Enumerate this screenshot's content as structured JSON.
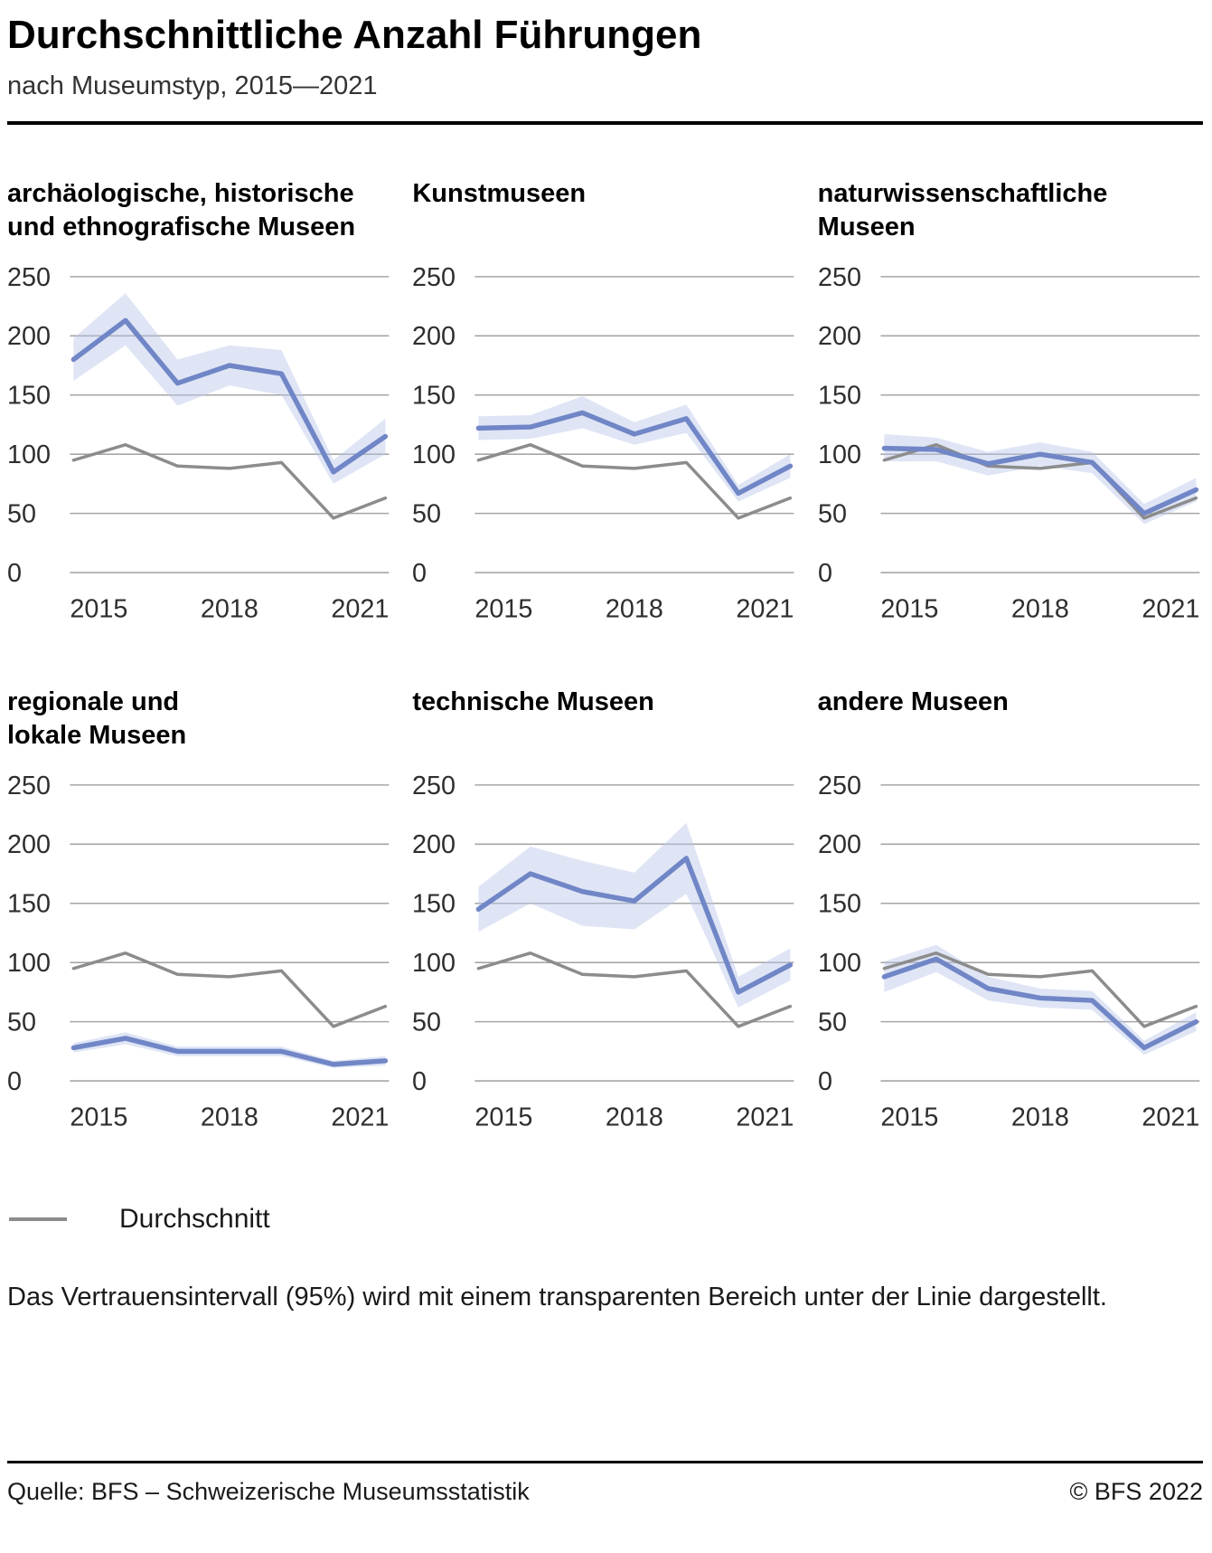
{
  "header": {
    "title": "Durchschnittliche Anzahl Führungen",
    "subtitle": "nach Museumstyp, 2015—2021"
  },
  "legend": {
    "label": "Durchschnitt"
  },
  "footnote": "Das Vertrauensintervall (95%) wird mit einem transparenten Bereich unter der Linie dargestellt.",
  "footer": {
    "source": "Quelle: BFS – Schweizerische Museumsstatistik",
    "copyright": "© BFS 2022"
  },
  "colors": {
    "series_line": "#7086c6",
    "band_fill": "#b9c6e8",
    "band_opacity": 0.45,
    "average_line": "#8c8c8c",
    "grid": "#a6a6a6",
    "tick_text": "#2e2e2e"
  },
  "chart_data": [
    {
      "type": "line",
      "title": "archäologische, historische\nund ethnografische Museen",
      "x": [
        2015,
        2016,
        2017,
        2018,
        2019,
        2020,
        2021
      ],
      "x_ticks": [
        "2015",
        "2018",
        "2021"
      ],
      "ylim": [
        0,
        250
      ],
      "y_ticks": [
        0,
        50,
        100,
        150,
        200,
        250
      ],
      "series": [
        {
          "name": "archäologische, historische und ethnografische Museen",
          "values": [
            180,
            213,
            160,
            175,
            168,
            85,
            115
          ],
          "ci_low": [
            162,
            192,
            141,
            158,
            150,
            75,
            100
          ],
          "ci_high": [
            198,
            236,
            180,
            192,
            188,
            95,
            130
          ]
        },
        {
          "name": "Durchschnitt",
          "values": [
            95,
            108,
            90,
            88,
            93,
            46,
            63
          ]
        }
      ]
    },
    {
      "type": "line",
      "title": "Kunstmuseen",
      "x": [
        2015,
        2016,
        2017,
        2018,
        2019,
        2020,
        2021
      ],
      "x_ticks": [
        "2015",
        "2018",
        "2021"
      ],
      "ylim": [
        0,
        250
      ],
      "y_ticks": [
        0,
        50,
        100,
        150,
        200,
        250
      ],
      "series": [
        {
          "name": "Kunstmuseen",
          "values": [
            122,
            123,
            135,
            117,
            130,
            67,
            90
          ],
          "ci_low": [
            112,
            113,
            122,
            108,
            118,
            60,
            80
          ],
          "ci_high": [
            132,
            133,
            149,
            127,
            142,
            74,
            100
          ]
        },
        {
          "name": "Durchschnitt",
          "values": [
            95,
            108,
            90,
            88,
            93,
            46,
            63
          ]
        }
      ]
    },
    {
      "type": "line",
      "title": "naturwissenschaftliche\nMuseen",
      "x": [
        2015,
        2016,
        2017,
        2018,
        2019,
        2020,
        2021
      ],
      "x_ticks": [
        "2015",
        "2018",
        "2021"
      ],
      "ylim": [
        0,
        250
      ],
      "y_ticks": [
        0,
        50,
        100,
        150,
        200,
        250
      ],
      "series": [
        {
          "name": "naturwissenschaftliche Museen",
          "values": [
            105,
            104,
            92,
            100,
            93,
            50,
            70
          ],
          "ci_low": [
            94,
            94,
            82,
            90,
            84,
            41,
            60
          ],
          "ci_high": [
            117,
            114,
            102,
            110,
            102,
            58,
            80
          ]
        },
        {
          "name": "Durchschnitt",
          "values": [
            95,
            108,
            90,
            88,
            93,
            46,
            63
          ]
        }
      ]
    },
    {
      "type": "line",
      "title": "regionale und\nlokale Museen",
      "x": [
        2015,
        2016,
        2017,
        2018,
        2019,
        2020,
        2021
      ],
      "x_ticks": [
        "2015",
        "2018",
        "2021"
      ],
      "ylim": [
        0,
        250
      ],
      "y_ticks": [
        0,
        50,
        100,
        150,
        200,
        250
      ],
      "series": [
        {
          "name": "regionale und lokale Museen",
          "values": [
            28,
            36,
            25,
            25,
            25,
            14,
            17
          ],
          "ci_low": [
            24,
            31,
            21,
            21,
            21,
            11,
            13
          ],
          "ci_high": [
            32,
            41,
            29,
            29,
            29,
            17,
            21
          ]
        },
        {
          "name": "Durchschnitt",
          "values": [
            95,
            108,
            90,
            88,
            93,
            46,
            63
          ]
        }
      ]
    },
    {
      "type": "line",
      "title": "technische Museen",
      "x": [
        2015,
        2016,
        2017,
        2018,
        2019,
        2020,
        2021
      ],
      "x_ticks": [
        "2015",
        "2018",
        "2021"
      ],
      "ylim": [
        0,
        250
      ],
      "y_ticks": [
        0,
        50,
        100,
        150,
        200,
        250
      ],
      "series": [
        {
          "name": "technische Museen",
          "values": [
            145,
            175,
            160,
            152,
            188,
            75,
            98
          ],
          "ci_low": [
            126,
            150,
            131,
            128,
            158,
            62,
            85
          ],
          "ci_high": [
            164,
            198,
            186,
            176,
            218,
            88,
            112
          ]
        },
        {
          "name": "Durchschnitt",
          "values": [
            95,
            108,
            90,
            88,
            93,
            46,
            63
          ]
        }
      ]
    },
    {
      "type": "line",
      "title": "andere Museen",
      "x": [
        2015,
        2016,
        2017,
        2018,
        2019,
        2020,
        2021
      ],
      "x_ticks": [
        "2015",
        "2018",
        "2021"
      ],
      "ylim": [
        0,
        250
      ],
      "y_ticks": [
        0,
        50,
        100,
        150,
        200,
        250
      ],
      "series": [
        {
          "name": "andere Museen",
          "values": [
            88,
            103,
            78,
            70,
            68,
            28,
            50
          ],
          "ci_low": [
            75,
            92,
            68,
            62,
            60,
            22,
            42
          ],
          "ci_high": [
            101,
            115,
            88,
            78,
            76,
            34,
            58
          ]
        },
        {
          "name": "Durchschnitt",
          "values": [
            95,
            108,
            90,
            88,
            93,
            46,
            63
          ]
        }
      ]
    }
  ]
}
